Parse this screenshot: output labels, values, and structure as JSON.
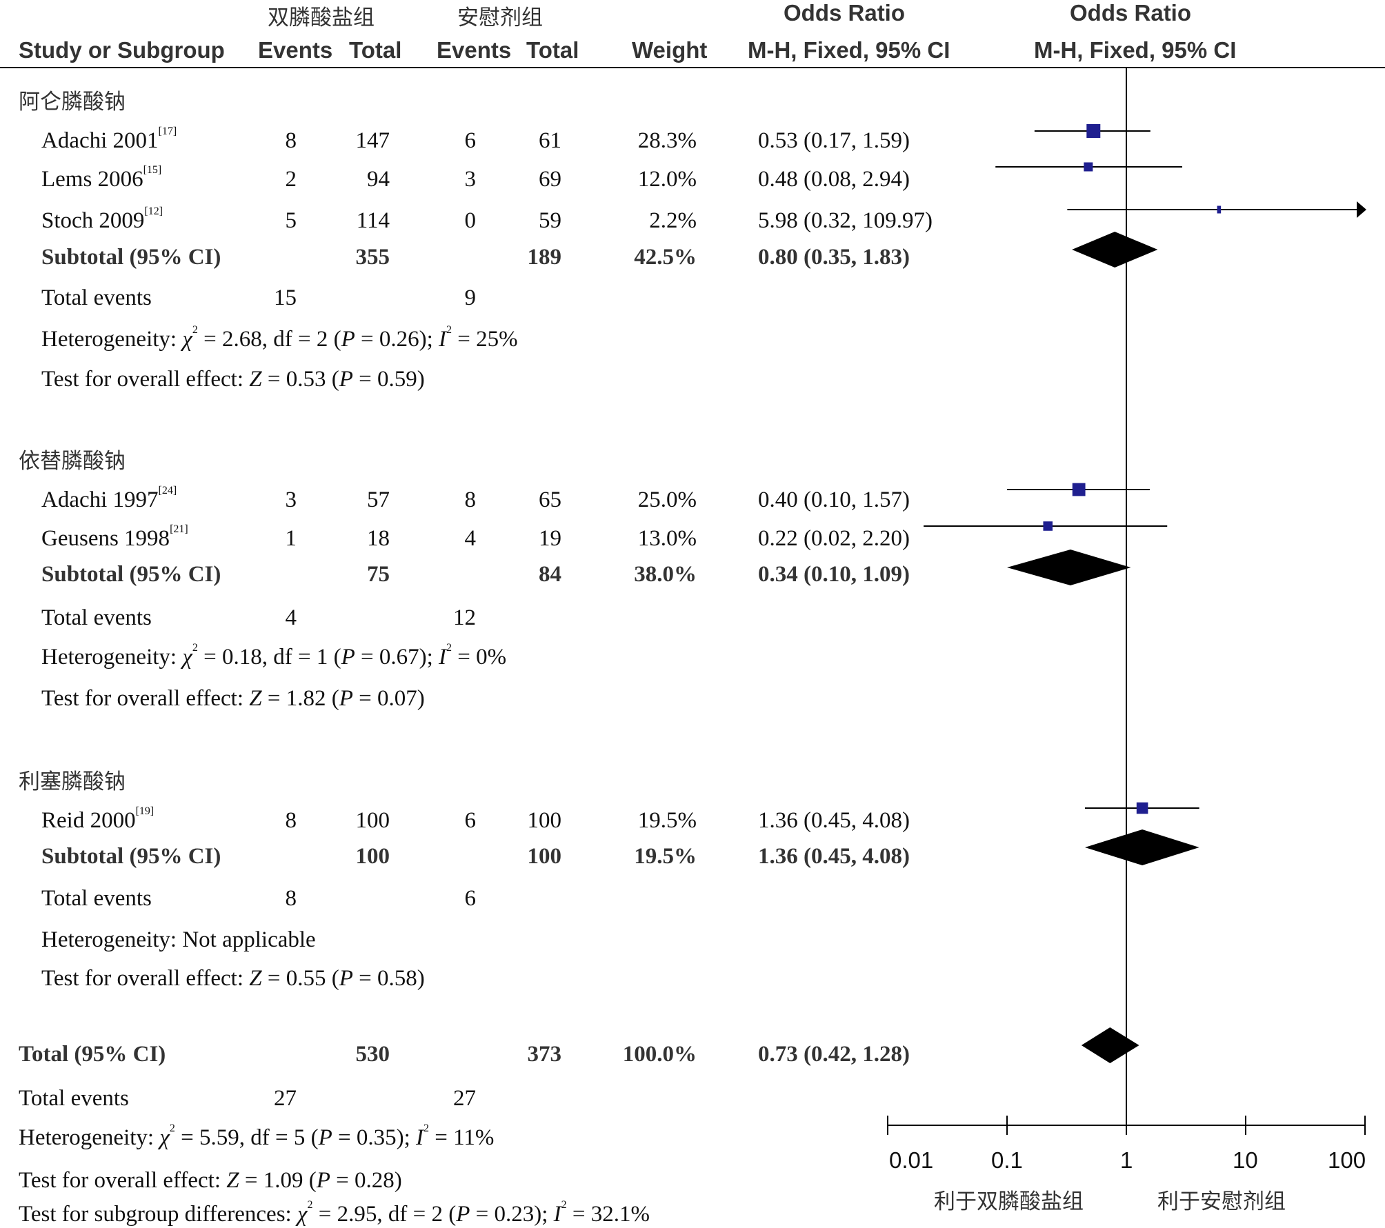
{
  "header": {
    "group1_name": "双膦酸盐组",
    "group2_name": "安慰剂组",
    "or_title_table": "Odds Ratio",
    "or_title_plot": "Odds Ratio",
    "col_study": "Study or Subgroup",
    "col_events1": "Events",
    "col_total1": "Total",
    "col_events2": "Events",
    "col_total2": "Total",
    "col_weight": "Weight",
    "col_method_table": "M-H, Fixed, 95% CI",
    "col_method_plot": "M-H, Fixed, 95% CI"
  },
  "colors": {
    "study_marker": "#1f1f8f",
    "diamond": "#000000",
    "line": "#000000"
  },
  "chart_data": {
    "type": "forest",
    "x_scale": "log",
    "x_range": [
      0.01,
      100
    ],
    "x_ticks": [
      "0.01",
      "0.1",
      "1",
      "10",
      "100"
    ],
    "x_tick_values": [
      0.01,
      0.1,
      1,
      10,
      100
    ],
    "reference_line": 1,
    "favours_left": "利于双膦酸盐组",
    "favours_right": "利于安慰剂组",
    "subgroups": [
      {
        "name": "阿仑膦酸钠",
        "studies": [
          {
            "label": "Adachi 2001",
            "ref": "[17]",
            "e1": "8",
            "t1": "147",
            "e2": "6",
            "t2": "61",
            "weight": "28.3%",
            "ci_text": "0.53 (0.17, 1.59)",
            "or": 0.53,
            "lo": 0.17,
            "hi": 1.59,
            "w": 28.3
          },
          {
            "label": "Lems 2006",
            "ref": "[15]",
            "e1": "2",
            "t1": "94",
            "e2": "3",
            "t2": "69",
            "weight": "12.0%",
            "ci_text": "0.48 (0.08, 2.94)",
            "or": 0.48,
            "lo": 0.08,
            "hi": 2.94,
            "w": 12.0
          },
          {
            "label": "Stoch 2009",
            "ref": "[12]",
            "e1": "5",
            "t1": "114",
            "e2": "0",
            "t2": "59",
            "weight": "2.2%",
            "ci_text": "5.98 (0.32, 109.97)",
            "or": 5.98,
            "lo": 0.32,
            "hi": 109.97,
            "w": 2.2
          }
        ],
        "subtotal": {
          "label": "Subtotal (95% CI)",
          "t1": "355",
          "t2": "189",
          "weight": "42.5%",
          "ci_text": "0.80 (0.35, 1.83)",
          "or": 0.8,
          "lo": 0.35,
          "hi": 1.83
        },
        "total_events": {
          "label": "Total events",
          "e1": "15",
          "e2": "9"
        },
        "heterogeneity": {
          "prefix": "Heterogeneity: ",
          "chi_sym": "χ",
          "chi_val": " = 2.68, df = 2 (",
          "p_part": " = 0.26); ",
          "i_part": " = 25%",
          "not_applicable": ""
        },
        "overall": {
          "prefix": "Test for overall effect: ",
          "z_part": " = 0.53 (",
          "p_part": " = 0.59)"
        }
      },
      {
        "name": "依替膦酸钠",
        "studies": [
          {
            "label": "Adachi 1997",
            "ref": "[24]",
            "e1": "3",
            "t1": "57",
            "e2": "8",
            "t2": "65",
            "weight": "25.0%",
            "ci_text": "0.40 (0.10, 1.57)",
            "or": 0.4,
            "lo": 0.1,
            "hi": 1.57,
            "w": 25.0
          },
          {
            "label": "Geusens 1998",
            "ref": "[21]",
            "e1": "1",
            "t1": "18",
            "e2": "4",
            "t2": "19",
            "weight": "13.0%",
            "ci_text": "0.22 (0.02, 2.20)",
            "or": 0.22,
            "lo": 0.02,
            "hi": 2.2,
            "w": 13.0
          }
        ],
        "subtotal": {
          "label": "Subtotal (95% CI)",
          "t1": "75",
          "t2": "84",
          "weight": "38.0%",
          "ci_text": "0.34 (0.10, 1.09)",
          "or": 0.34,
          "lo": 0.1,
          "hi": 1.09
        },
        "total_events": {
          "label": "Total events",
          "e1": "4",
          "e2": "12"
        },
        "heterogeneity": {
          "prefix": "Heterogeneity: ",
          "chi_sym": "χ",
          "chi_val": " = 0.18, df = 1 (",
          "p_part": " = 0.67); ",
          "i_part": " = 0%",
          "not_applicable": ""
        },
        "overall": {
          "prefix": "Test for overall effect: ",
          "z_part": " = 1.82 (",
          "p_part": " = 0.07)"
        }
      },
      {
        "name": "利塞膦酸钠",
        "studies": [
          {
            "label": "Reid 2000",
            "ref": "[19]",
            "e1": "8",
            "t1": "100",
            "e2": "6",
            "t2": "100",
            "weight": "19.5%",
            "ci_text": "1.36 (0.45, 4.08)",
            "or": 1.36,
            "lo": 0.45,
            "hi": 4.08,
            "w": 19.5
          }
        ],
        "subtotal": {
          "label": "Subtotal (95% CI)",
          "t1": "100",
          "t2": "100",
          "weight": "19.5%",
          "ci_text": "1.36 (0.45, 4.08)",
          "or": 1.36,
          "lo": 0.45,
          "hi": 4.08
        },
        "total_events": {
          "label": "Total events",
          "e1": "8",
          "e2": "6"
        },
        "heterogeneity": {
          "not_applicable": "Heterogeneity: Not applicable"
        },
        "overall": {
          "prefix": "Test for overall effect: ",
          "z_part": " = 0.55 (",
          "p_part": " = 0.58)"
        }
      }
    ],
    "total": {
      "label": "Total (95% CI)",
      "t1": "530",
      "t2": "373",
      "weight": "100.0%",
      "ci_text": "0.73 (0.42, 1.28)",
      "or": 0.73,
      "lo": 0.42,
      "hi": 1.28
    },
    "total_events": {
      "label": "Total events",
      "e1": "27",
      "e2": "27"
    },
    "heterogeneity": {
      "prefix": "Heterogeneity: ",
      "chi_sym": "χ",
      "chi_val": " = 5.59, df = 5 (",
      "p_part": " = 0.35); ",
      "i_part": " = 11%"
    },
    "overall": {
      "prefix": "Test for overall effect: ",
      "z_part": " = 1.09 (",
      "p_part": " = 0.28)"
    },
    "subgroup_diff": {
      "prefix": "Test for subgroup differences: ",
      "chi_sym": "χ",
      "chi_val": " = 2.95, df = 2 (",
      "p_part": " = 0.23); ",
      "i_part": " = 32.1%"
    }
  }
}
